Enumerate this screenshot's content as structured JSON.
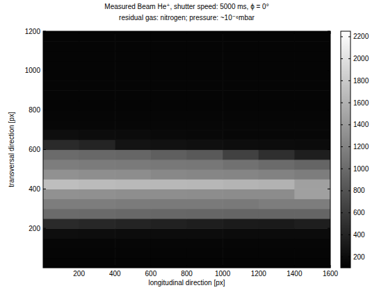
{
  "chart_data": {
    "type": "heatmap",
    "title": "Measured Beam He⁺, shutter speed: 5000 ms, ϕ = 0°",
    "subtitle": "residual gas: nitrogen; pressure: ~10⁻⁶mbar",
    "x_label": "longitudinal direction [px]",
    "y_label": "transversal direction [px]",
    "xlim": [
      0,
      1600
    ],
    "ylim": [
      0,
      1200
    ],
    "xticks": [
      200,
      400,
      600,
      800,
      1000,
      1200,
      1400,
      1600
    ],
    "yticks": [
      200,
      400,
      600,
      800,
      1000,
      1200
    ],
    "x_edges": [
      0,
      200,
      400,
      600,
      800,
      1000,
      1200,
      1400,
      1600
    ],
    "y_edges": [
      0,
      50,
      100,
      150,
      200,
      250,
      300,
      350,
      400,
      450,
      500,
      550,
      600,
      650,
      700,
      750,
      800,
      850,
      900,
      950,
      1000,
      1050,
      1100,
      1150,
      1200
    ],
    "values": [
      [
        130,
        130,
        130,
        130,
        130,
        130,
        130,
        130
      ],
      [
        140,
        140,
        140,
        140,
        140,
        140,
        140,
        140
      ],
      [
        150,
        150,
        150,
        150,
        150,
        150,
        150,
        150
      ],
      [
        220,
        210,
        200,
        200,
        200,
        190,
        190,
        190
      ],
      [
        450,
        430,
        400,
        380,
        350,
        330,
        320,
        350
      ],
      [
        1000,
        990,
        980,
        970,
        960,
        950,
        950,
        950
      ],
      [
        1150,
        1150,
        1140,
        1130,
        1130,
        1120,
        1150,
        1150
      ],
      [
        1320,
        1310,
        1300,
        1300,
        1290,
        1280,
        1280,
        1450
      ],
      [
        1700,
        1680,
        1660,
        1650,
        1640,
        1620,
        1600,
        1450
      ],
      [
        1320,
        1300,
        1290,
        1250,
        1230,
        1220,
        1200,
        1150
      ],
      [
        1150,
        1140,
        1130,
        1110,
        1100,
        1050,
        1000,
        950
      ],
      [
        1000,
        980,
        960,
        900,
        850,
        650,
        500,
        350
      ],
      [
        450,
        400,
        260,
        240,
        230,
        210,
        200,
        190
      ],
      [
        220,
        200,
        190,
        180,
        170,
        160,
        160,
        160
      ],
      [
        160,
        160,
        160,
        160,
        160,
        160,
        160,
        160
      ],
      [
        150,
        150,
        150,
        150,
        150,
        150,
        150,
        150
      ],
      [
        140,
        140,
        140,
        140,
        140,
        140,
        140,
        140
      ],
      [
        140,
        140,
        140,
        140,
        140,
        140,
        140,
        140
      ],
      [
        140,
        140,
        140,
        140,
        140,
        140,
        140,
        140
      ],
      [
        140,
        140,
        140,
        140,
        140,
        140,
        140,
        140
      ],
      [
        140,
        140,
        140,
        140,
        140,
        140,
        140,
        140
      ],
      [
        140,
        140,
        140,
        140,
        140,
        140,
        140,
        140
      ],
      [
        140,
        140,
        140,
        140,
        140,
        140,
        140,
        140
      ],
      [
        130,
        130,
        130,
        130,
        130,
        130,
        130,
        130
      ]
    ],
    "color": "gray",
    "colorbar_lim": [
      100,
      2250
    ],
    "colorbar_ticks": [
      200,
      400,
      600,
      800,
      1000,
      1200,
      1400,
      1600,
      1800,
      2000,
      2200
    ]
  }
}
